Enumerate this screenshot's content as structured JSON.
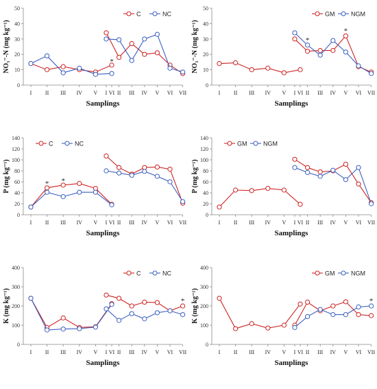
{
  "colors": {
    "series_a": "#cc2222",
    "series_b": "#3a5fbf",
    "axis": "#888888"
  },
  "chart_data": [
    {
      "type": "line",
      "ylabel": "NO₃⁻-N (mg kg⁻¹)",
      "xlabel": "Samplings",
      "ylim": [
        0,
        50
      ],
      "yticks": [
        0,
        10,
        20,
        30,
        40,
        50
      ],
      "legend": [
        "C",
        "NC"
      ],
      "legend_position": "top-right",
      "groups": [
        {
          "categories": [
            "I",
            "II",
            "III",
            "IV",
            "V",
            "VI"
          ],
          "series": [
            {
              "values": [
                14,
                10,
                12,
                10,
                8.5,
                13
              ]
            },
            {
              "values": [
                14,
                19,
                8,
                11,
                7,
                7.5
              ]
            }
          ]
        },
        {
          "categories": [
            "I",
            "II",
            "III",
            "IV",
            "V",
            "VI",
            "VII"
          ],
          "series": [
            {
              "values": [
                34,
                18,
                27,
                20,
                21,
                13,
                7.5
              ]
            },
            {
              "values": [
                30,
                29.5,
                16,
                30,
                33,
                11,
                8.5
              ]
            }
          ]
        }
      ],
      "annotations": [
        {
          "text": "*",
          "group": 0,
          "category": "VI",
          "y": 16
        }
      ]
    },
    {
      "type": "line",
      "ylabel": "NO₃⁻-N (mg kg⁻¹)",
      "xlabel": "Samplings",
      "ylim": [
        0,
        50
      ],
      "yticks": [
        0,
        10,
        20,
        30,
        40,
        50
      ],
      "legend": [
        "GM",
        "NGM"
      ],
      "legend_position": "top-right",
      "groups": [
        {
          "categories": [
            "I",
            "II",
            "III",
            "IV",
            "V",
            "VI"
          ],
          "series": [
            {
              "values": [
                14,
                14.5,
                10,
                11,
                8,
                10
              ]
            }
          ]
        },
        {
          "categories": [
            "I",
            "II",
            "III",
            "IV",
            "V",
            "VI",
            "VII"
          ],
          "series": [
            {
              "values": [
                30,
                22,
                22.5,
                22.5,
                32,
                12,
                8.5
              ]
            },
            {
              "values": [
                34,
                26,
                19.5,
                29,
                21.5,
                12.5,
                7.5
              ]
            }
          ]
        }
      ],
      "annotations": [
        {
          "text": "*",
          "group": 1,
          "category": "II",
          "y": 30
        },
        {
          "text": "*",
          "group": 1,
          "category": "V",
          "y": 36
        }
      ]
    },
    {
      "type": "line",
      "ylabel": "P (mg kg⁻¹)",
      "xlabel": "Samplings",
      "ylim": [
        0,
        140
      ],
      "yticks": [
        0,
        20,
        40,
        60,
        80,
        100,
        120,
        140
      ],
      "legend": [
        "C",
        "NC"
      ],
      "legend_position": "top-left",
      "groups": [
        {
          "categories": [
            "I",
            "II",
            "III",
            "IV",
            "V",
            "VI"
          ],
          "series": [
            {
              "values": [
                14,
                49,
                54,
                57,
                48,
                19
              ]
            },
            {
              "values": [
                14,
                41,
                33,
                41,
                41,
                18
              ]
            }
          ]
        },
        {
          "categories": [
            "I",
            "II",
            "III",
            "IV",
            "V",
            "VI",
            "VII"
          ],
          "series": [
            {
              "values": [
                107,
                86,
                74,
                86,
                87,
                83,
                21
              ]
            },
            {
              "values": [
                80,
                76,
                72,
                79,
                70,
                60,
                24
              ]
            }
          ]
        }
      ],
      "annotations": [
        {
          "text": "*",
          "group": 0,
          "category": "II",
          "y": 59
        },
        {
          "text": "*",
          "group": 0,
          "category": "III",
          "y": 64
        }
      ]
    },
    {
      "type": "line",
      "ylabel": "P (mg kg⁻¹)",
      "xlabel": "Samplings",
      "ylim": [
        0,
        140
      ],
      "yticks": [
        0,
        20,
        40,
        60,
        80,
        100,
        120,
        140
      ],
      "legend": [
        "GM",
        "NGM"
      ],
      "legend_position": "top-left",
      "groups": [
        {
          "categories": [
            "I",
            "II",
            "III",
            "IV",
            "V",
            "VI"
          ],
          "series": [
            {
              "values": [
                14,
                45,
                44,
                48,
                45,
                19
              ]
            }
          ]
        },
        {
          "categories": [
            "I",
            "II",
            "III",
            "IV",
            "V",
            "VI",
            "VII"
          ],
          "series": [
            {
              "values": [
                101,
                86,
                78,
                80,
                92,
                56,
                22
              ]
            },
            {
              "values": [
                86,
                77,
                70,
                81,
                64,
                86,
                20
              ]
            }
          ]
        }
      ],
      "annotations": []
    },
    {
      "type": "line",
      "ylabel": "K (mg kg⁻¹)",
      "xlabel": "Samplings",
      "ylim": [
        0,
        400
      ],
      "yticks": [
        0,
        100,
        200,
        300,
        400
      ],
      "legend": [
        "C",
        "NC"
      ],
      "legend_position": "top-right",
      "groups": [
        {
          "categories": [
            "I",
            "II",
            "III",
            "IV",
            "V",
            "VI"
          ],
          "series": [
            {
              "values": [
                240,
                88,
                138,
                88,
                92,
                212
              ]
            },
            {
              "values": [
                240,
                75,
                80,
                82,
                90,
                208
              ]
            }
          ]
        },
        {
          "categories": [
            "I",
            "II",
            "III",
            "IV",
            "V",
            "VI",
            "VII"
          ],
          "series": [
            {
              "values": [
                257,
                240,
                200,
                220,
                218,
                175,
                200
              ]
            },
            {
              "values": [
                185,
                125,
                160,
                133,
                165,
                175,
                155
              ]
            }
          ]
        }
      ],
      "annotations": [
        {
          "text": "*",
          "group": 1,
          "category": "VII",
          "y": 232
        }
      ]
    },
    {
      "type": "line",
      "ylabel": "K (mg kg⁻¹)",
      "xlabel": "Samplings",
      "ylim": [
        0,
        400
      ],
      "yticks": [
        0,
        100,
        200,
        300,
        400
      ],
      "legend": [
        "GM",
        "NGM"
      ],
      "legend_position": "top-right",
      "groups": [
        {
          "categories": [
            "I",
            "II",
            "III",
            "IV",
            "V",
            "VI"
          ],
          "series": [
            {
              "values": [
                240,
                82,
                108,
                85,
                100,
                210
              ]
            }
          ]
        },
        {
          "categories": [
            "I",
            "II",
            "III",
            "IV",
            "V",
            "VI",
            "VII"
          ],
          "series": [
            {
              "values": [
                100,
                220,
                175,
                200,
                222,
                155,
                150
              ]
            },
            {
              "values": [
                88,
                145,
                182,
                155,
                155,
                195,
                200
              ]
            }
          ]
        }
      ],
      "annotations": [
        {
          "text": "*",
          "group": 1,
          "category": "VII",
          "y": 232
        }
      ]
    }
  ]
}
